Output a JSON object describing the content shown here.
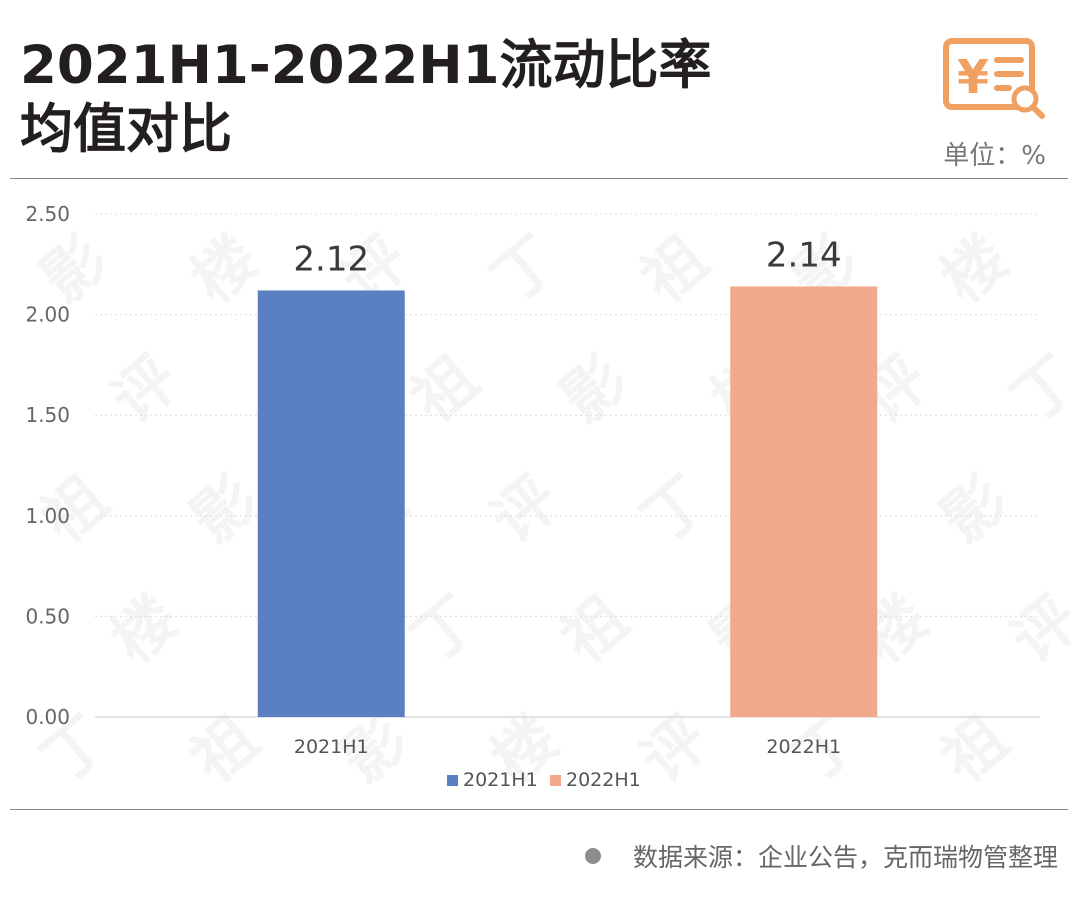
{
  "header": {
    "title_line1": "2021H1-2022H1流动比率",
    "title_line2": "均值对比",
    "unit": "单位：%",
    "logo_icon": "yuan-invoice-search-icon"
  },
  "footer": {
    "source": "数据来源：企业公告，克而瑞物管整理"
  },
  "watermark_chars": [
    "影",
    "楼",
    "评",
    "丁",
    "祖"
  ],
  "colors": {
    "series_2021H1": "#5b80c1",
    "series_2022H1": "#f0a98a",
    "accent": "#f0a060"
  },
  "chart_data": {
    "type": "bar",
    "categories": [
      "2021H1",
      "2022H1"
    ],
    "series": [
      {
        "name": "2021H1",
        "values": [
          2.12,
          null
        ]
      },
      {
        "name": "2022H1",
        "values": [
          null,
          2.14
        ]
      }
    ],
    "data_labels": [
      "2.12",
      "2.14"
    ],
    "yticks": [
      "0.00",
      "0.50",
      "1.00",
      "1.50",
      "2.00",
      "2.50"
    ],
    "ylim": [
      0,
      2.5
    ],
    "grid": true,
    "legend": [
      "2021H1",
      "2022H1"
    ],
    "legend_position": "bottom"
  }
}
